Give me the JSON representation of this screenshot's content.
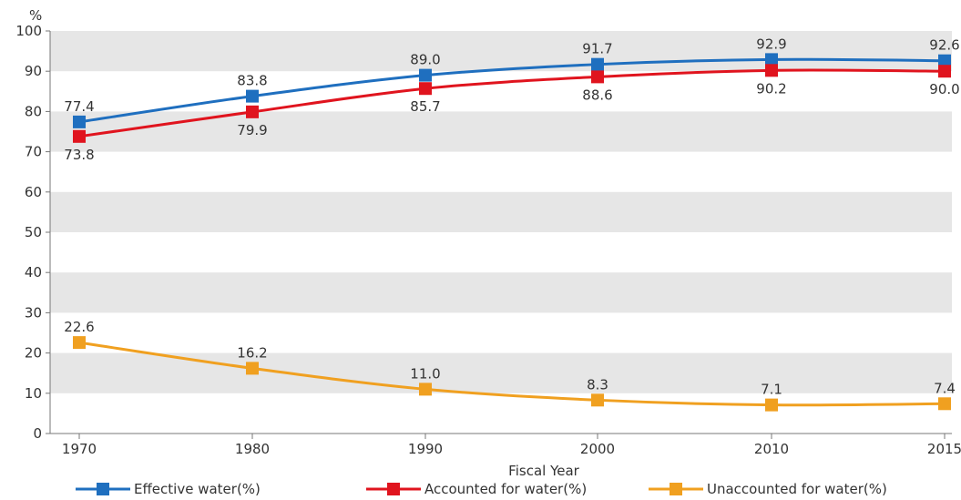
{
  "chart_data": {
    "type": "line",
    "title": "",
    "xlabel": "Fiscal Year",
    "ylabel": "%",
    "ylim": [
      0,
      100
    ],
    "yticks": [
      0,
      10,
      20,
      30,
      40,
      50,
      60,
      70,
      80,
      90,
      100
    ],
    "categories": [
      "1970",
      "1980",
      "1990",
      "2000",
      "2010",
      "2015"
    ],
    "grid": "alternating horizontal bands",
    "legend_position": "bottom",
    "series": [
      {
        "name": "Effective water(%)",
        "color": "#1f6fbf",
        "values": [
          77.4,
          83.8,
          89.0,
          91.7,
          92.9,
          92.6
        ],
        "labels": [
          "77.4",
          "83.8",
          "89.0",
          "91.7",
          "92.9",
          "92.6"
        ],
        "label_position": "above"
      },
      {
        "name": "Accounted for water(%)",
        "color": "#e0141e",
        "values": [
          73.8,
          79.9,
          85.7,
          88.6,
          90.2,
          90.0
        ],
        "labels": [
          "73.8",
          "79.9",
          "85.7",
          "88.6",
          "90.2",
          "90.0"
        ],
        "label_position": "below"
      },
      {
        "name": "Unaccounted for water(%)",
        "color": "#f0a020",
        "values": [
          22.6,
          16.2,
          11.0,
          8.3,
          7.1,
          7.4
        ],
        "labels": [
          "22.6",
          "16.2",
          "11.0",
          "8.3",
          "7.1",
          "7.4"
        ],
        "label_position": "above"
      }
    ]
  }
}
